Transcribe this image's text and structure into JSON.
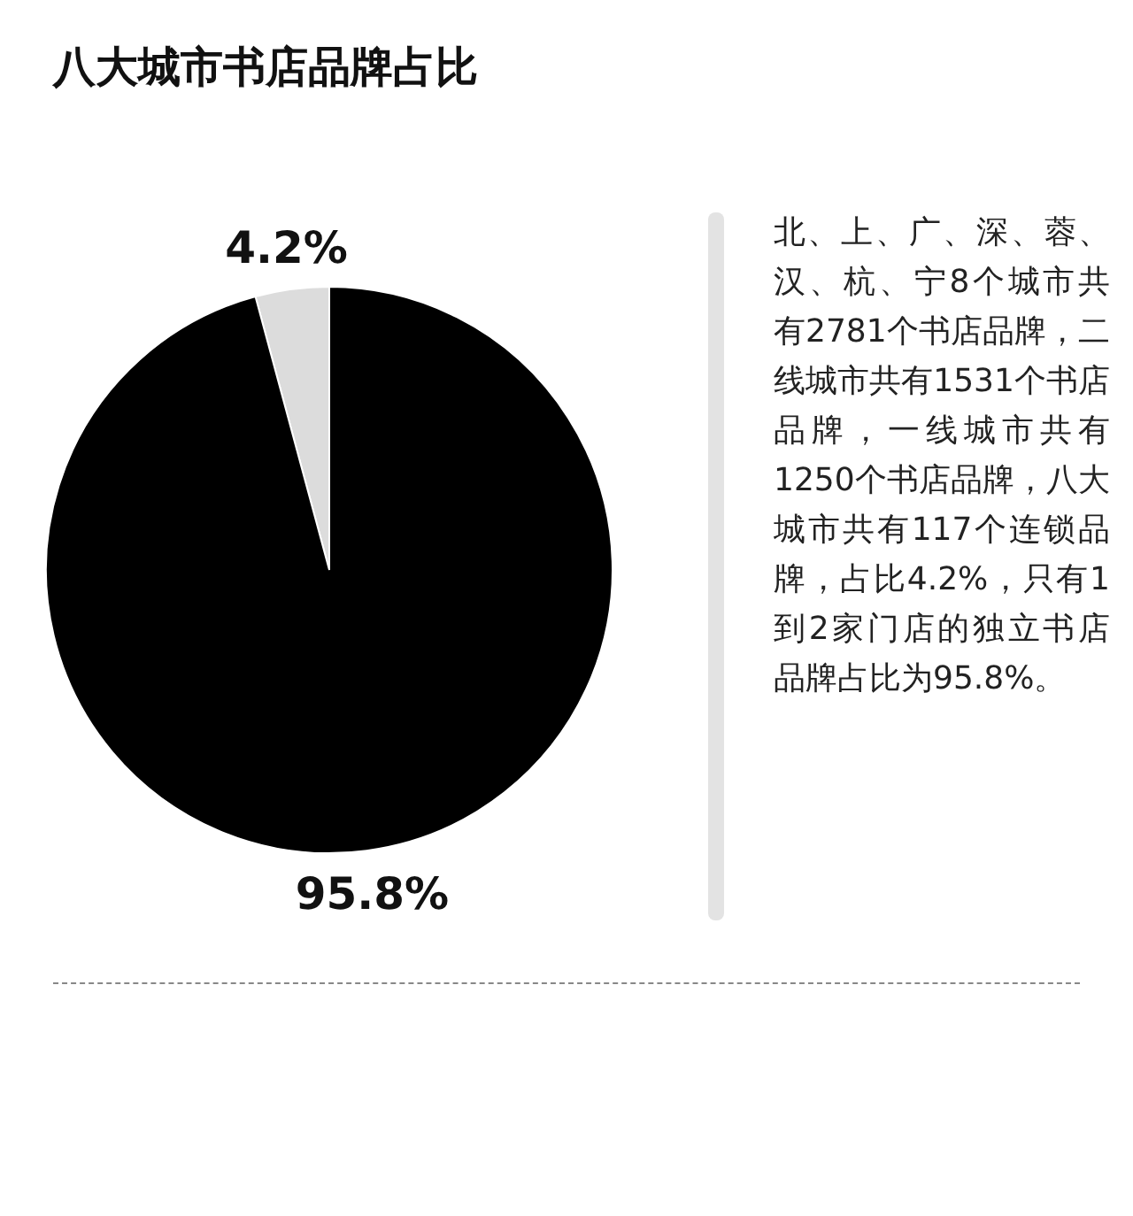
{
  "chart_data": {
    "type": "pie",
    "title": "八大城市书店品牌占比",
    "categories": [
      null,
      null
    ],
    "values": [
      4.2,
      95.8
    ],
    "value_labels": [
      "4.2%",
      "95.8%"
    ],
    "colors": [
      "#dcdcdc",
      "#000000"
    ],
    "annotations": [
      "北、上、广、深、蓉、汉、杭、宁8个城市共有2781个书店品牌，二线城市共有1531个书店品牌，一线城市共有1250个书店品牌，八大城市共有117个连锁品牌，占比4.2%，只有1到2家门店的独立书店品牌占比为95.8%。"
    ]
  }
}
